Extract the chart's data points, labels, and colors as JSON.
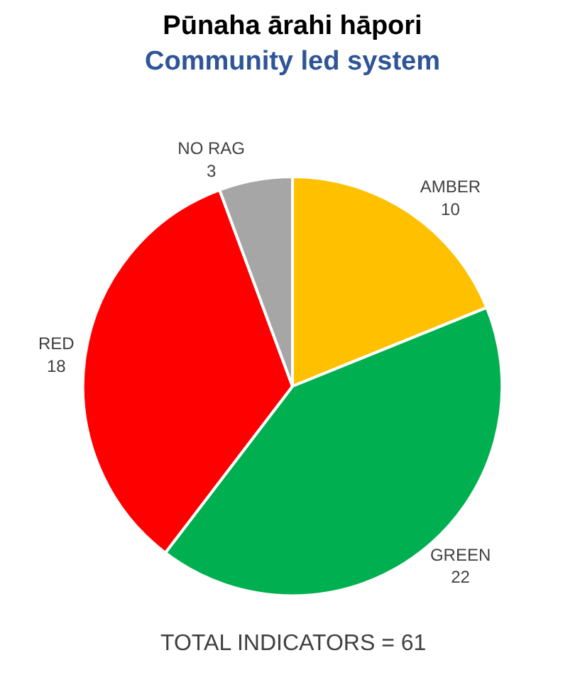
{
  "chart_data": {
    "type": "pie",
    "title": "Pūnaha ārahi hāpori",
    "subtitle": "Community led system",
    "categories": [
      "AMBER",
      "GREEN",
      "RED",
      "NO RAG"
    ],
    "values": [
      10,
      22,
      18,
      3
    ],
    "colors": [
      "#ffc000",
      "#00b050",
      "#ff0000",
      "#a6a6a6"
    ],
    "data_labels": true,
    "legend": false,
    "annotations": [
      "TOTAL INDICATORS = 61"
    ]
  }
}
